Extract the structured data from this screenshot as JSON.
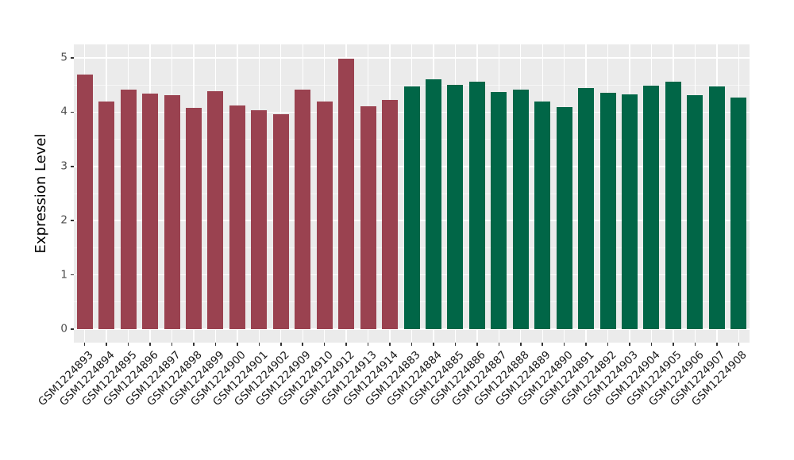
{
  "figure": {
    "background": "#FFFFFF",
    "panel_background": "#EBEBEB",
    "grid_color": "#FFFFFF",
    "tick_color": "#333333",
    "tick_label_color": "#4D4D4D",
    "axis_title_color": "#000000"
  },
  "chart_data": {
    "type": "bar",
    "title": "",
    "xlabel": "",
    "ylabel": "Expression Level",
    "ylim": [
      0,
      5
    ],
    "ylim_expanded": [
      -0.25,
      5.25
    ],
    "yticks": [
      0,
      1,
      2,
      3,
      4,
      5
    ],
    "yminor": [
      0.5,
      1.5,
      2.5,
      3.5,
      4.5
    ],
    "grid": true,
    "legend": false,
    "group_colors": {
      "maroon": "#9A4250",
      "green": "#016647"
    },
    "categories": [
      "GSM1224893",
      "GSM1224894",
      "GSM1224895",
      "GSM1224896",
      "GSM1224897",
      "GSM1224898",
      "GSM1224899",
      "GSM1224900",
      "GSM1224901",
      "GSM1224902",
      "GSM1224909",
      "GSM1224910",
      "GSM1224912",
      "GSM1224913",
      "GSM1224914",
      "GSM1224883",
      "GSM1224884",
      "GSM1224885",
      "GSM1224886",
      "GSM1224887",
      "GSM1224888",
      "GSM1224889",
      "GSM1224890",
      "GSM1224891",
      "GSM1224892",
      "GSM1224903",
      "GSM1224904",
      "GSM1224905",
      "GSM1224906",
      "GSM1224907",
      "GSM1224908"
    ],
    "values": [
      4.7,
      4.19,
      4.42,
      4.34,
      4.31,
      4.08,
      4.38,
      4.13,
      4.03,
      3.97,
      4.41,
      4.2,
      4.99,
      4.11,
      4.23,
      4.48,
      4.6,
      4.51,
      4.56,
      4.37,
      4.42,
      4.2,
      4.1,
      4.45,
      4.36,
      4.33,
      4.49,
      4.56,
      4.31,
      4.47,
      4.27
    ],
    "groups": [
      "maroon",
      "maroon",
      "maroon",
      "maroon",
      "maroon",
      "maroon",
      "maroon",
      "maroon",
      "maroon",
      "maroon",
      "maroon",
      "maroon",
      "maroon",
      "maroon",
      "maroon",
      "green",
      "green",
      "green",
      "green",
      "green",
      "green",
      "green",
      "green",
      "green",
      "green",
      "green",
      "green",
      "green",
      "green",
      "green",
      "green"
    ]
  }
}
